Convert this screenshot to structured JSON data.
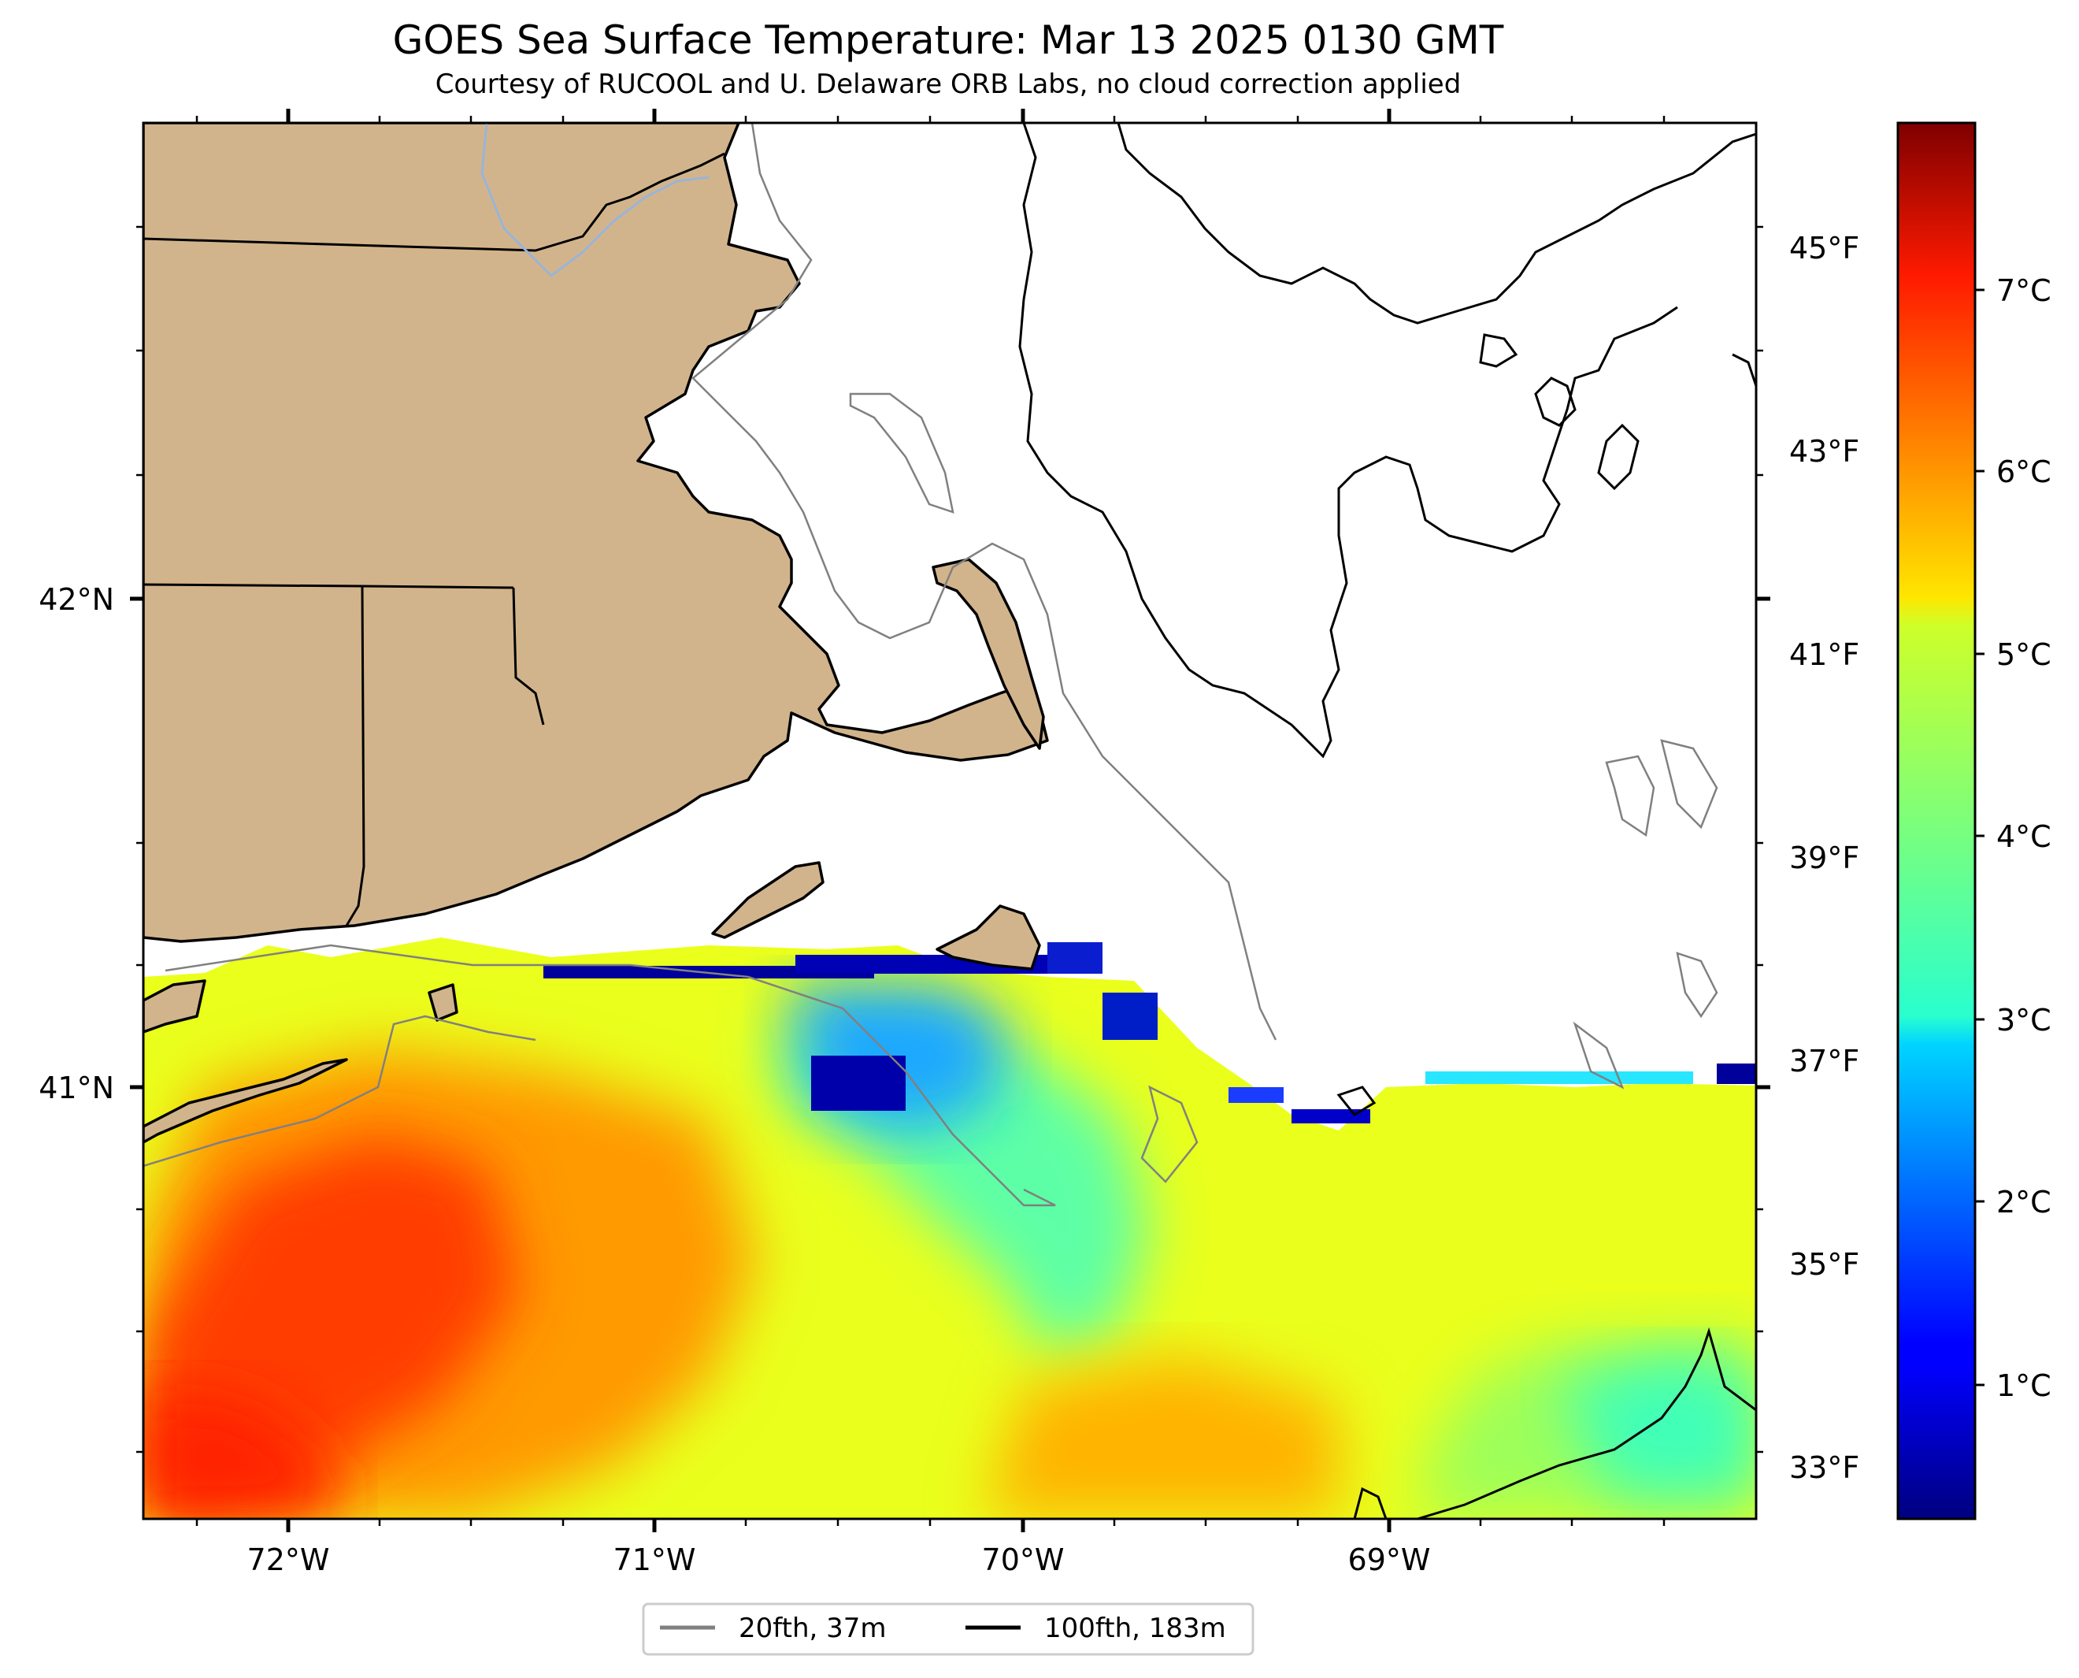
{
  "header": {
    "title": "GOES Sea Surface Temperature: Mar 13 2025 0130 GMT",
    "subtitle": "Courtesy of RUCOOL and U. Delaware ORB Labs, no cloud correction applied"
  },
  "map": {
    "x_ticks": [
      "72°W",
      "71°W",
      "70°W",
      "69°W"
    ],
    "y_ticks": [
      "42°N",
      "41°N"
    ],
    "land_color": "#d2b48c",
    "sst_colors": [
      "#ff2000",
      "#ff7a00",
      "#ffd200",
      "#e4ff1a",
      "#3fffb8",
      "#0000c8"
    ]
  },
  "colorbar": {
    "celsius_ticks": [
      "7°C",
      "6°C",
      "5°C",
      "4°C",
      "3°C",
      "2°C",
      "1°C"
    ],
    "fahrenheit_ticks": [
      "45°F",
      "43°F",
      "41°F",
      "39°F",
      "37°F",
      "35°F",
      "33°F"
    ],
    "colormap": "jet",
    "celsius_range": [
      0.25,
      8.1
    ]
  },
  "legend": {
    "items": [
      {
        "label": "20fth, 37m",
        "color": "#808080"
      },
      {
        "label": "100fth, 183m",
        "color": "#000000"
      }
    ]
  }
}
